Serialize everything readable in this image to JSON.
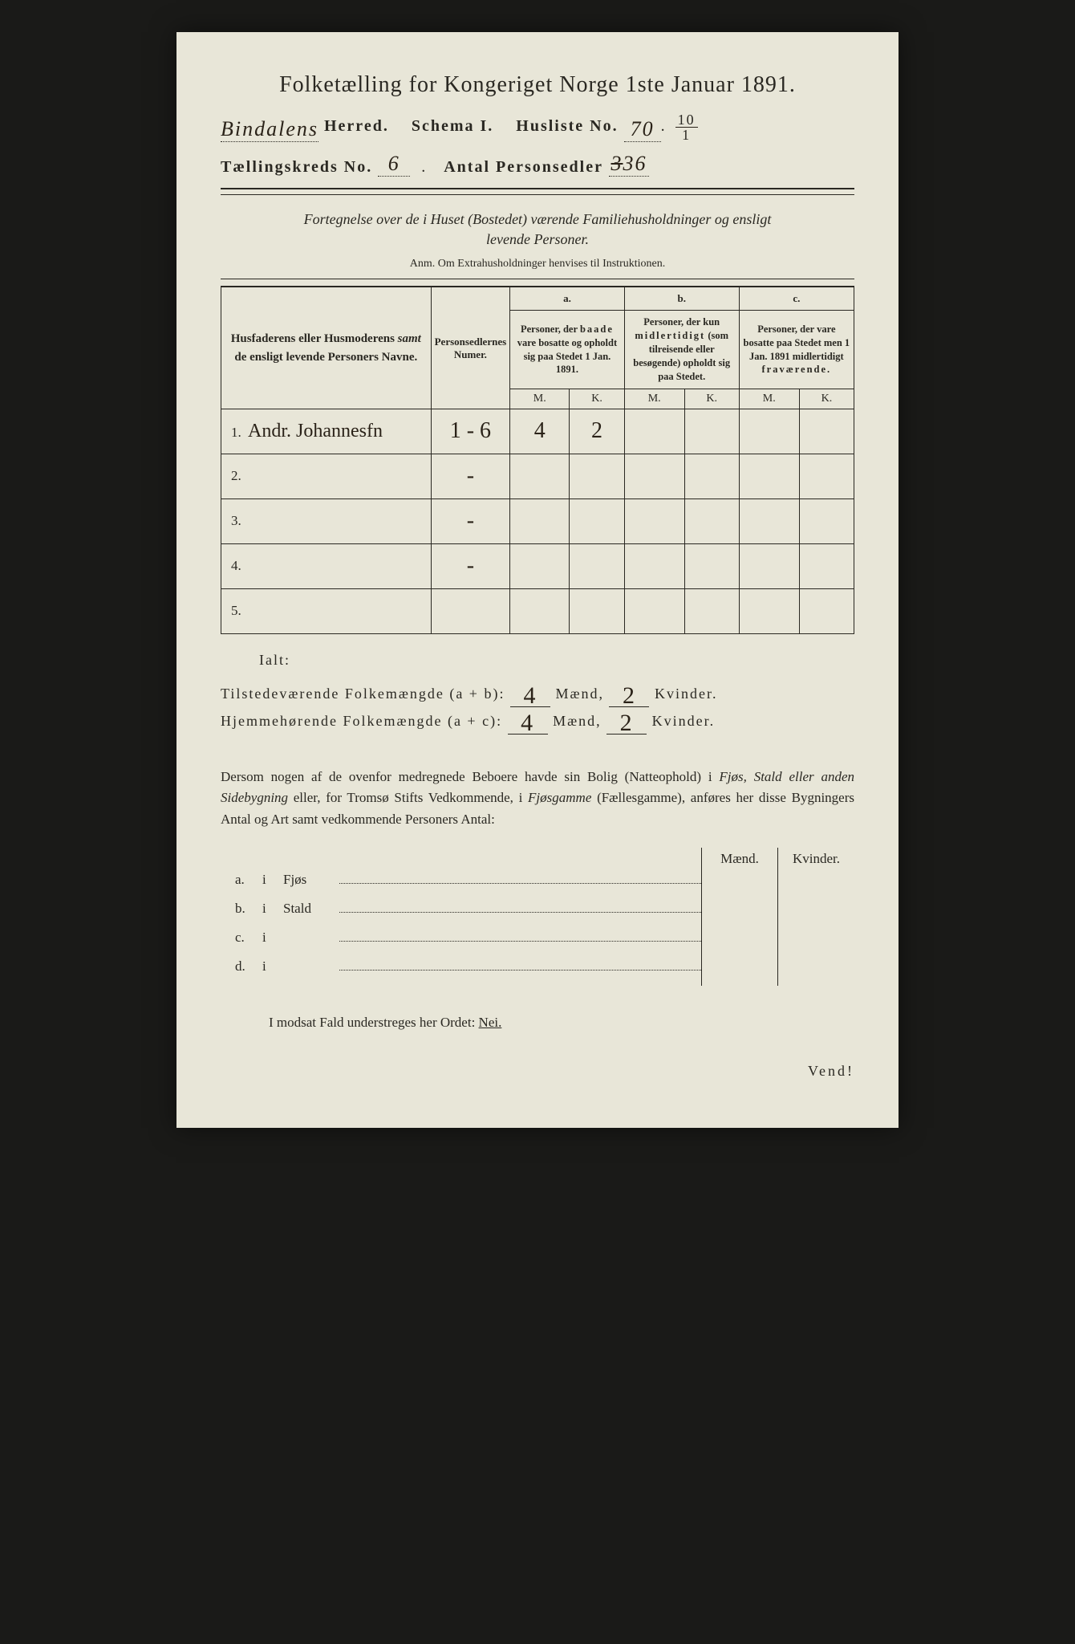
{
  "header": {
    "title": "Folketælling for Kongeriget Norge 1ste Januar 1891.",
    "herred_hand": "Bindalens",
    "herred_label": "Herred.",
    "schema_label": "Schema I.",
    "husliste_label": "Husliste No.",
    "husliste_no": "70",
    "husliste_frac_top": "10",
    "husliste_frac_bot": "1",
    "kreds_label": "Tællingskreds No.",
    "kreds_no": "6",
    "sedler_label": "Antal Personsedler",
    "sedler_no": "36"
  },
  "subtitle": {
    "line1": "Fortegnelse over de i Huset (Bostedet) værende Familiehusholdninger og ensligt",
    "line2": "levende Personer.",
    "anm": "Anm. Om Extrahusholdninger henvises til Instruktionen."
  },
  "table": {
    "col_name": "Husfaderens eller Husmoderens samt de ensligt levende Personers Navne.",
    "col_num": "Personsedlernes Numer.",
    "a_label": "a.",
    "a_text": "Personer, der baade vare bosatte og opholdt sig paa Stedet 1 Jan. 1891.",
    "b_label": "b.",
    "b_text": "Personer, der kun midlertidigt (som tilreisende eller besøgende) opholdt sig paa Stedet.",
    "c_label": "c.",
    "c_text": "Personer, der vare bosatte paa Stedet men 1 Jan. 1891 midlertidigt fraværende.",
    "m": "M.",
    "k": "K.",
    "rows": [
      {
        "n": "1.",
        "name": "Andr. Johannesfn",
        "num": "1 - 6",
        "am": "4",
        "ak": "2",
        "bm": "",
        "bk": "",
        "cm": "",
        "ck": ""
      },
      {
        "n": "2.",
        "name": "",
        "num": "-",
        "am": "",
        "ak": "",
        "bm": "",
        "bk": "",
        "cm": "",
        "ck": ""
      },
      {
        "n": "3.",
        "name": "",
        "num": "-",
        "am": "",
        "ak": "",
        "bm": "",
        "bk": "",
        "cm": "",
        "ck": ""
      },
      {
        "n": "4.",
        "name": "",
        "num": "-",
        "am": "",
        "ak": "",
        "bm": "",
        "bk": "",
        "cm": "",
        "ck": ""
      },
      {
        "n": "5.",
        "name": "",
        "num": "",
        "am": "",
        "ak": "",
        "bm": "",
        "bk": "",
        "cm": "",
        "ck": ""
      }
    ]
  },
  "totals": {
    "ialt": "Ialt:",
    "tilstede_label": "Tilstedeværende Folkemængde (a + b):",
    "hjemme_label": "Hjemmehørende Folkemængde (a + c):",
    "maend": "Mænd,",
    "kvinder": "Kvinder.",
    "tilstede_m": "4",
    "tilstede_k": "2",
    "hjemme_m": "4",
    "hjemme_k": "2"
  },
  "dersom": "Dersom nogen af de ovenfor medregnede Beboere havde sin Bolig (Natteophold) i Fjøs, Stald eller anden Sidebygning eller, for Tromsø Stifts Vedkommende, i Fjøsgamme (Fællesgamme), anføres her disse Bygningers Antal og Art samt vedkommende Personers Antal:",
  "buildings": {
    "maend": "Mænd.",
    "kvinder": "Kvinder.",
    "rows": [
      {
        "lbl": "a.",
        "i": "i",
        "text": "Fjøs"
      },
      {
        "lbl": "b.",
        "i": "i",
        "text": "Stald"
      },
      {
        "lbl": "c.",
        "i": "i",
        "text": ""
      },
      {
        "lbl": "d.",
        "i": "i",
        "text": ""
      }
    ]
  },
  "modsat": {
    "text": "I modsat Fald understreges her Ordet:",
    "nei": "Nei."
  },
  "vend": "Vend!",
  "colors": {
    "paper": "#e8e6d8",
    "ink": "#2a2822",
    "hand": "#2a2218",
    "purple": "#6a4270",
    "bg": "#1a1a18"
  }
}
